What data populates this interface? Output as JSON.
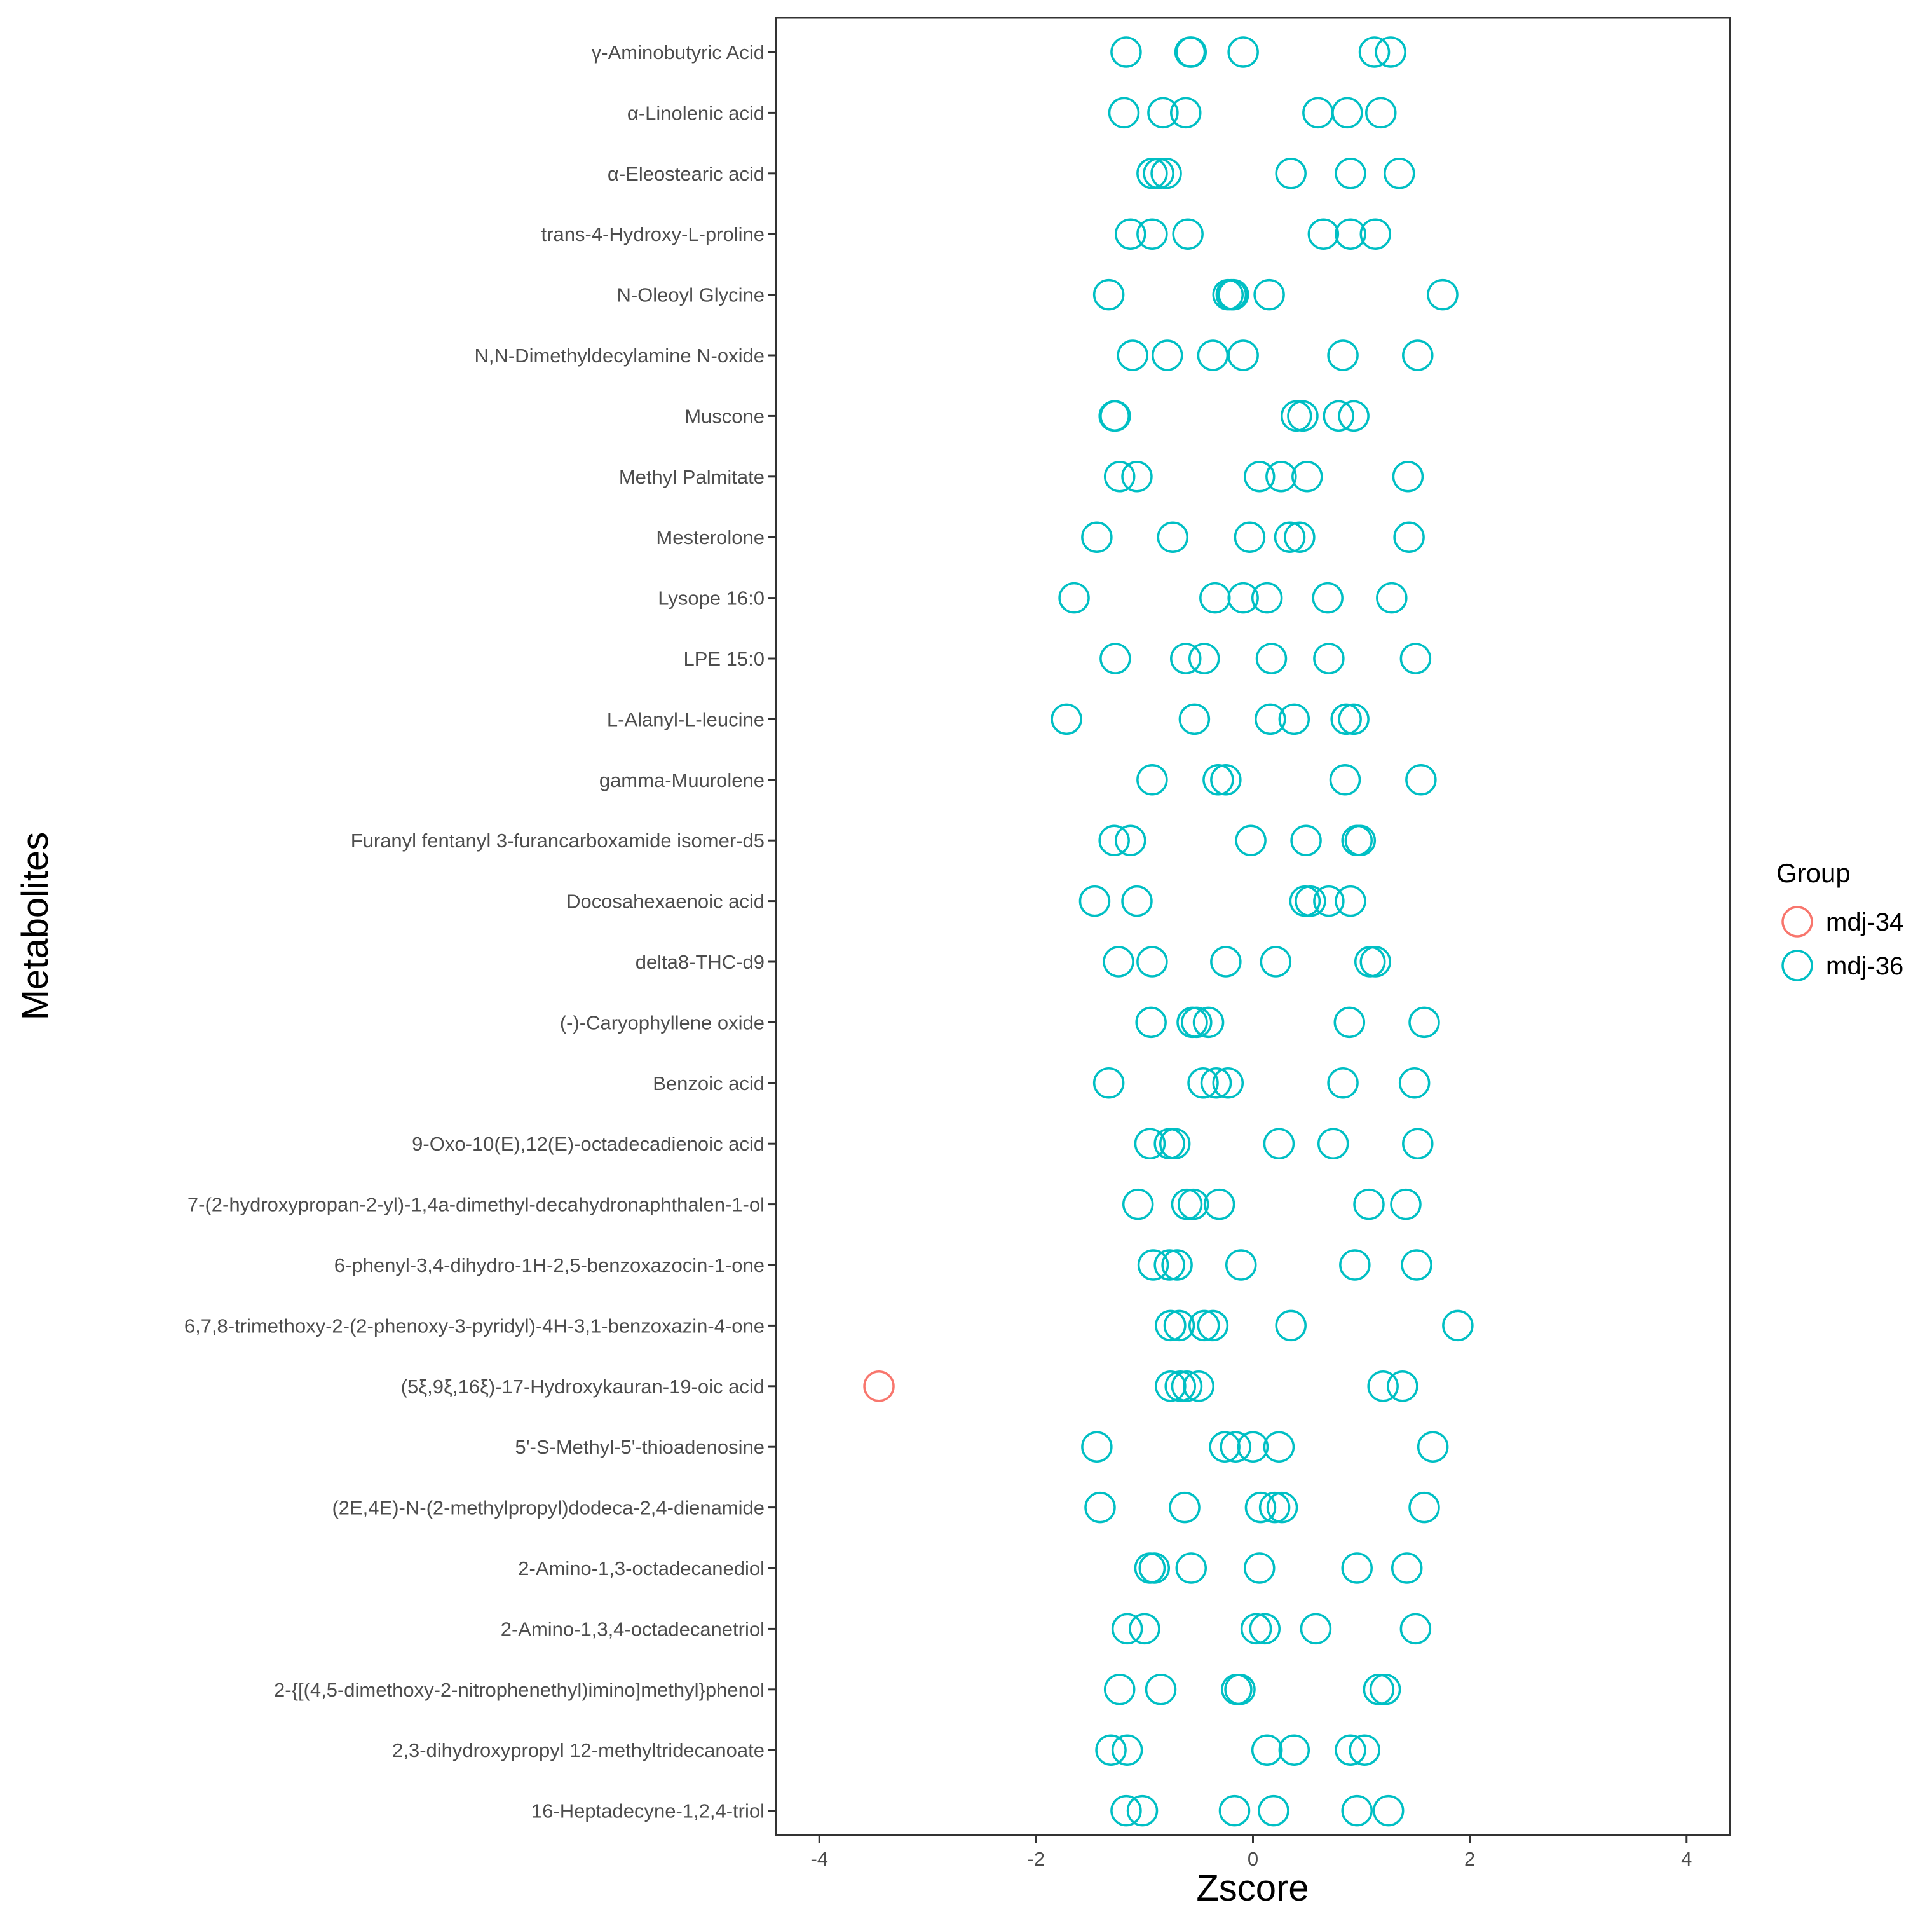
{
  "chart_data": {
    "type": "scatter",
    "title": "",
    "xlabel": "Zscore",
    "ylabel": "Metabolites",
    "xlim": [
      -4.4,
      4.4
    ],
    "xticks": [
      -4,
      -2,
      0,
      2,
      4
    ],
    "xtick_labels": [
      "-4",
      "-2",
      "0",
      "2",
      "4"
    ],
    "grid": false,
    "legend": {
      "title": "Group",
      "position": "right",
      "entries": [
        {
          "name": "mdj-34",
          "color": "#F8766D"
        },
        {
          "name": "mdj-36",
          "color": "#00BFC4"
        }
      ]
    },
    "categories": [
      "γ-Aminobutyric Acid",
      "α-Linolenic acid",
      "α-Eleostearic acid",
      "trans-4-Hydroxy-L-proline",
      "N-Oleoyl Glycine",
      "N,N-Dimethyldecylamine N-oxide",
      "Muscone",
      "Methyl Palmitate",
      "Mesterolone",
      "Lysope 16:0",
      "LPE 15:0",
      "L-Alanyl-L-leucine",
      "gamma-Muurolene",
      "Furanyl fentanyl 3-furancarboxamide isomer-d5",
      "Docosahexaenoic acid",
      "delta8-THC-d9",
      "(-)-Caryophyllene oxide",
      "Benzoic acid",
      "9-Oxo-10(E),12(E)-octadecadienoic acid",
      "7-(2-hydroxypropan-2-yl)-1,4a-dimethyl-decahydronaphthalen-1-ol",
      "6-phenyl-3,4-dihydro-1H-2,5-benzoxazocin-1-one",
      "6,7,8-trimethoxy-2-(2-phenoxy-3-pyridyl)-4H-3,1-benzoxazin-4-one",
      "(5ξ,9ξ,16ξ)-17-Hydroxykauran-19-oic acid",
      "5'-S-Methyl-5'-thioadenosine",
      "(2E,4E)-N-(2-methylpropyl)dodeca-2,4-dienamide",
      "2-Amino-1,3-octadecanediol",
      "2-Amino-1,3,4-octadecanetriol",
      "2-{[(4,5-dimethoxy-2-nitrophenethyl)imino]methyl}phenol",
      "2,3-dihydroxypropyl 12-methyltridecanoate",
      "16-Heptadecyne-1,2,4-triol"
    ],
    "series": [
      {
        "name": "mdj-34",
        "color": "#F8766D",
        "points": [
          {
            "category": "(5ξ,9ξ,16ξ)-17-Hydroxykauran-19-oic acid",
            "x": -3.45
          }
        ]
      },
      {
        "name": "mdj-36",
        "color": "#00BFC4",
        "values": [
          [
            -1.17,
            -0.58,
            -0.57,
            -0.09,
            1.12,
            1.27
          ],
          [
            -1.19,
            -0.83,
            -0.62,
            0.6,
            0.87,
            1.18
          ],
          [
            -0.93,
            -0.87,
            -0.8,
            0.35,
            0.9,
            1.35
          ],
          [
            -1.13,
            -0.93,
            -0.6,
            0.65,
            0.9,
            1.13
          ],
          [
            -1.33,
            -0.23,
            -0.2,
            -0.18,
            0.15,
            1.75
          ],
          [
            -1.11,
            -0.79,
            -0.37,
            -0.09,
            0.83,
            1.52
          ],
          [
            -1.28,
            -1.27,
            0.4,
            0.46,
            0.79,
            0.93
          ],
          [
            -1.23,
            -1.07,
            0.06,
            0.26,
            0.5,
            1.43
          ],
          [
            -1.44,
            -0.74,
            -0.03,
            0.34,
            0.43,
            1.44
          ],
          [
            -1.65,
            -0.35,
            -0.09,
            0.13,
            0.69,
            1.28
          ],
          [
            -1.27,
            -0.62,
            -0.45,
            0.17,
            0.7,
            1.5
          ],
          [
            -1.72,
            -0.54,
            0.16,
            0.38,
            0.86,
            0.93
          ],
          [
            -0.93,
            -0.32,
            -0.25,
            0.85,
            1.55
          ],
          [
            -1.28,
            -1.13,
            -0.02,
            0.49,
            0.96,
            0.99
          ],
          [
            -1.46,
            -1.07,
            0.48,
            0.53,
            0.7,
            0.9
          ],
          [
            -1.24,
            -0.93,
            -0.25,
            0.21,
            1.08,
            1.13
          ],
          [
            -0.94,
            -0.56,
            -0.52,
            -0.41,
            0.89,
            1.58
          ],
          [
            -1.33,
            -0.46,
            -0.34,
            -0.23,
            0.83,
            1.49
          ],
          [
            -0.95,
            -0.77,
            -0.72,
            0.24,
            0.74,
            1.52
          ],
          [
            -1.06,
            -0.61,
            -0.55,
            -0.31,
            1.07,
            1.41
          ],
          [
            -0.92,
            -0.77,
            -0.7,
            -0.11,
            0.94,
            1.51
          ],
          [
            -0.76,
            -0.68,
            -0.45,
            -0.37,
            0.35,
            1.89
          ],
          [
            -0.76,
            -0.67,
            -0.61,
            -0.5,
            1.2,
            1.38
          ],
          [
            -1.44,
            -0.26,
            -0.16,
            0.0,
            0.24,
            1.66
          ],
          [
            -1.41,
            -0.63,
            0.07,
            0.2,
            0.27,
            1.58
          ],
          [
            -0.95,
            -0.91,
            -0.57,
            0.06,
            0.96,
            1.42
          ],
          [
            -1.16,
            -1.0,
            0.03,
            0.11,
            0.58,
            1.5
          ],
          [
            -1.23,
            -0.85,
            -0.15,
            -0.12,
            1.16,
            1.22
          ],
          [
            -1.31,
            -1.16,
            0.13,
            0.38,
            0.9,
            1.03
          ],
          [
            -1.17,
            -1.02,
            -0.17,
            0.19,
            0.96,
            1.25
          ]
        ]
      }
    ]
  }
}
